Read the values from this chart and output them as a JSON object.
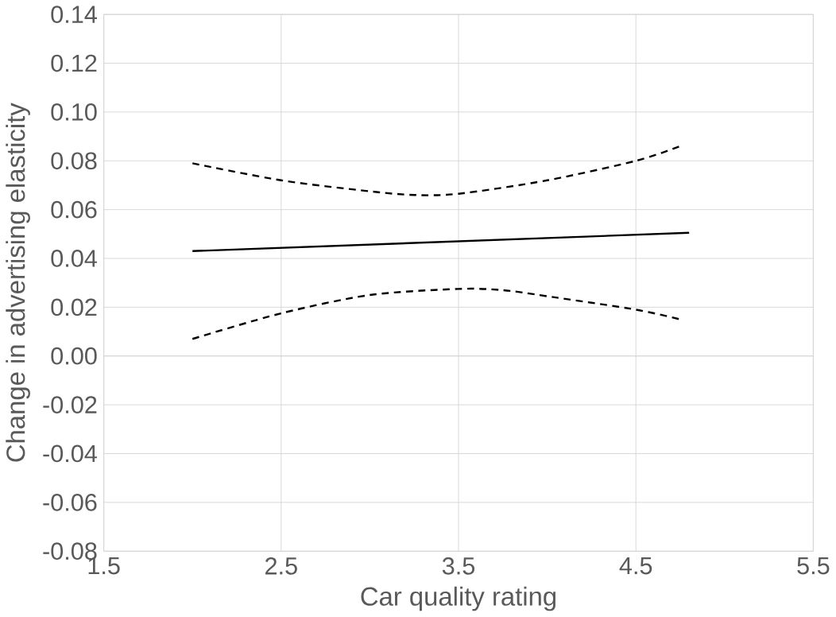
{
  "chart_data": {
    "type": "line",
    "xlabel": "Car quality rating",
    "ylabel": "Change in advertising elasticity",
    "xlim": [
      1.5,
      5.5
    ],
    "xticks": [
      1.5,
      2.5,
      3.5,
      4.5,
      5.5
    ],
    "ylim": [
      -0.08,
      0.14
    ],
    "yticks": [
      {
        "value": -0.08,
        "label": "-0.08"
      },
      {
        "value": -0.06,
        "label": "-0.06"
      },
      {
        "value": -0.04,
        "label": "-0.04"
      },
      {
        "value": -0.02,
        "label": "-0.02"
      },
      {
        "value": 0,
        "label": "0.00"
      },
      {
        "value": 0.02,
        "label": "0.02"
      },
      {
        "value": 0.04,
        "label": "0.04"
      },
      {
        "value": 0.06,
        "label": "0.06"
      },
      {
        "value": 0.08,
        "label": "0.08"
      },
      {
        "value": 0.1,
        "label": "0.10"
      },
      {
        "value": 0.12,
        "label": "0.12"
      },
      {
        "value": 0.14,
        "label": "0.14"
      }
    ],
    "grid": true,
    "line_style": "solid",
    "series": [
      {
        "color": "#000000",
        "x": [
          2.0,
          4.8
        ],
        "values": [
          0.043,
          0.0505
        ]
      },
      {
        "color": "#000000",
        "line_style": "dashed",
        "x": [
          2.0,
          2.5,
          3.0,
          3.25,
          3.5,
          4.0,
          4.5,
          4.75
        ],
        "values": [
          0.079,
          0.072,
          0.0675,
          0.066,
          0.0665,
          0.072,
          0.08,
          0.086
        ]
      },
      {
        "color": "#000000",
        "line_style": "dashed",
        "x": [
          2.0,
          2.5,
          3.0,
          3.5,
          3.75,
          4.0,
          4.5,
          4.75
        ],
        "values": [
          0.007,
          0.0175,
          0.025,
          0.0275,
          0.027,
          0.0245,
          0.019,
          0.015
        ]
      }
    ]
  }
}
